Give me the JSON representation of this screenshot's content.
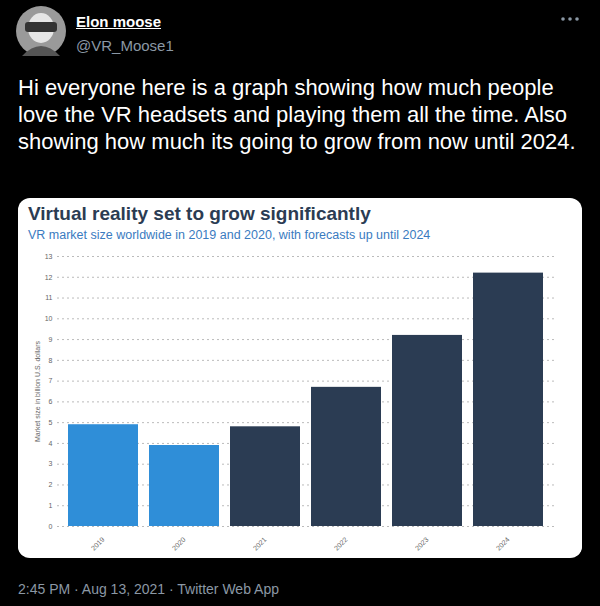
{
  "tweet": {
    "name": "Elon moose",
    "handle": "@VR_Moose1",
    "text": "Hi everyone here is a graph showing how much people love the VR headsets and playing them all the time. Also showing how much its going to grow from now until 2024.",
    "timestamp": "2:45 PM · Aug 13, 2021 · Twitter Web App"
  },
  "chart_data": {
    "type": "bar",
    "title": "Virtual reality set to grow significantly",
    "subtitle": "VR market size worldwide in 2019 and 2020, with forecasts up until 2024",
    "y_label": "Market size in billion U.S. dollars",
    "categories": [
      "2019",
      "2020",
      "2021",
      "2022",
      "2023",
      "2024"
    ],
    "values": [
      4.9,
      3.9,
      4.8,
      6.7,
      9.2,
      12.2
    ],
    "colors": [
      "#2f8ed8",
      "#2f8ed8",
      "#2b3c53",
      "#2b3c53",
      "#2b3c53",
      "#2b3c53"
    ],
    "ylim": [
      0,
      13
    ],
    "yticks": [
      0,
      1,
      2,
      3,
      4,
      5,
      6,
      7,
      8,
      9,
      10,
      11,
      12,
      13
    ],
    "grid": true
  }
}
